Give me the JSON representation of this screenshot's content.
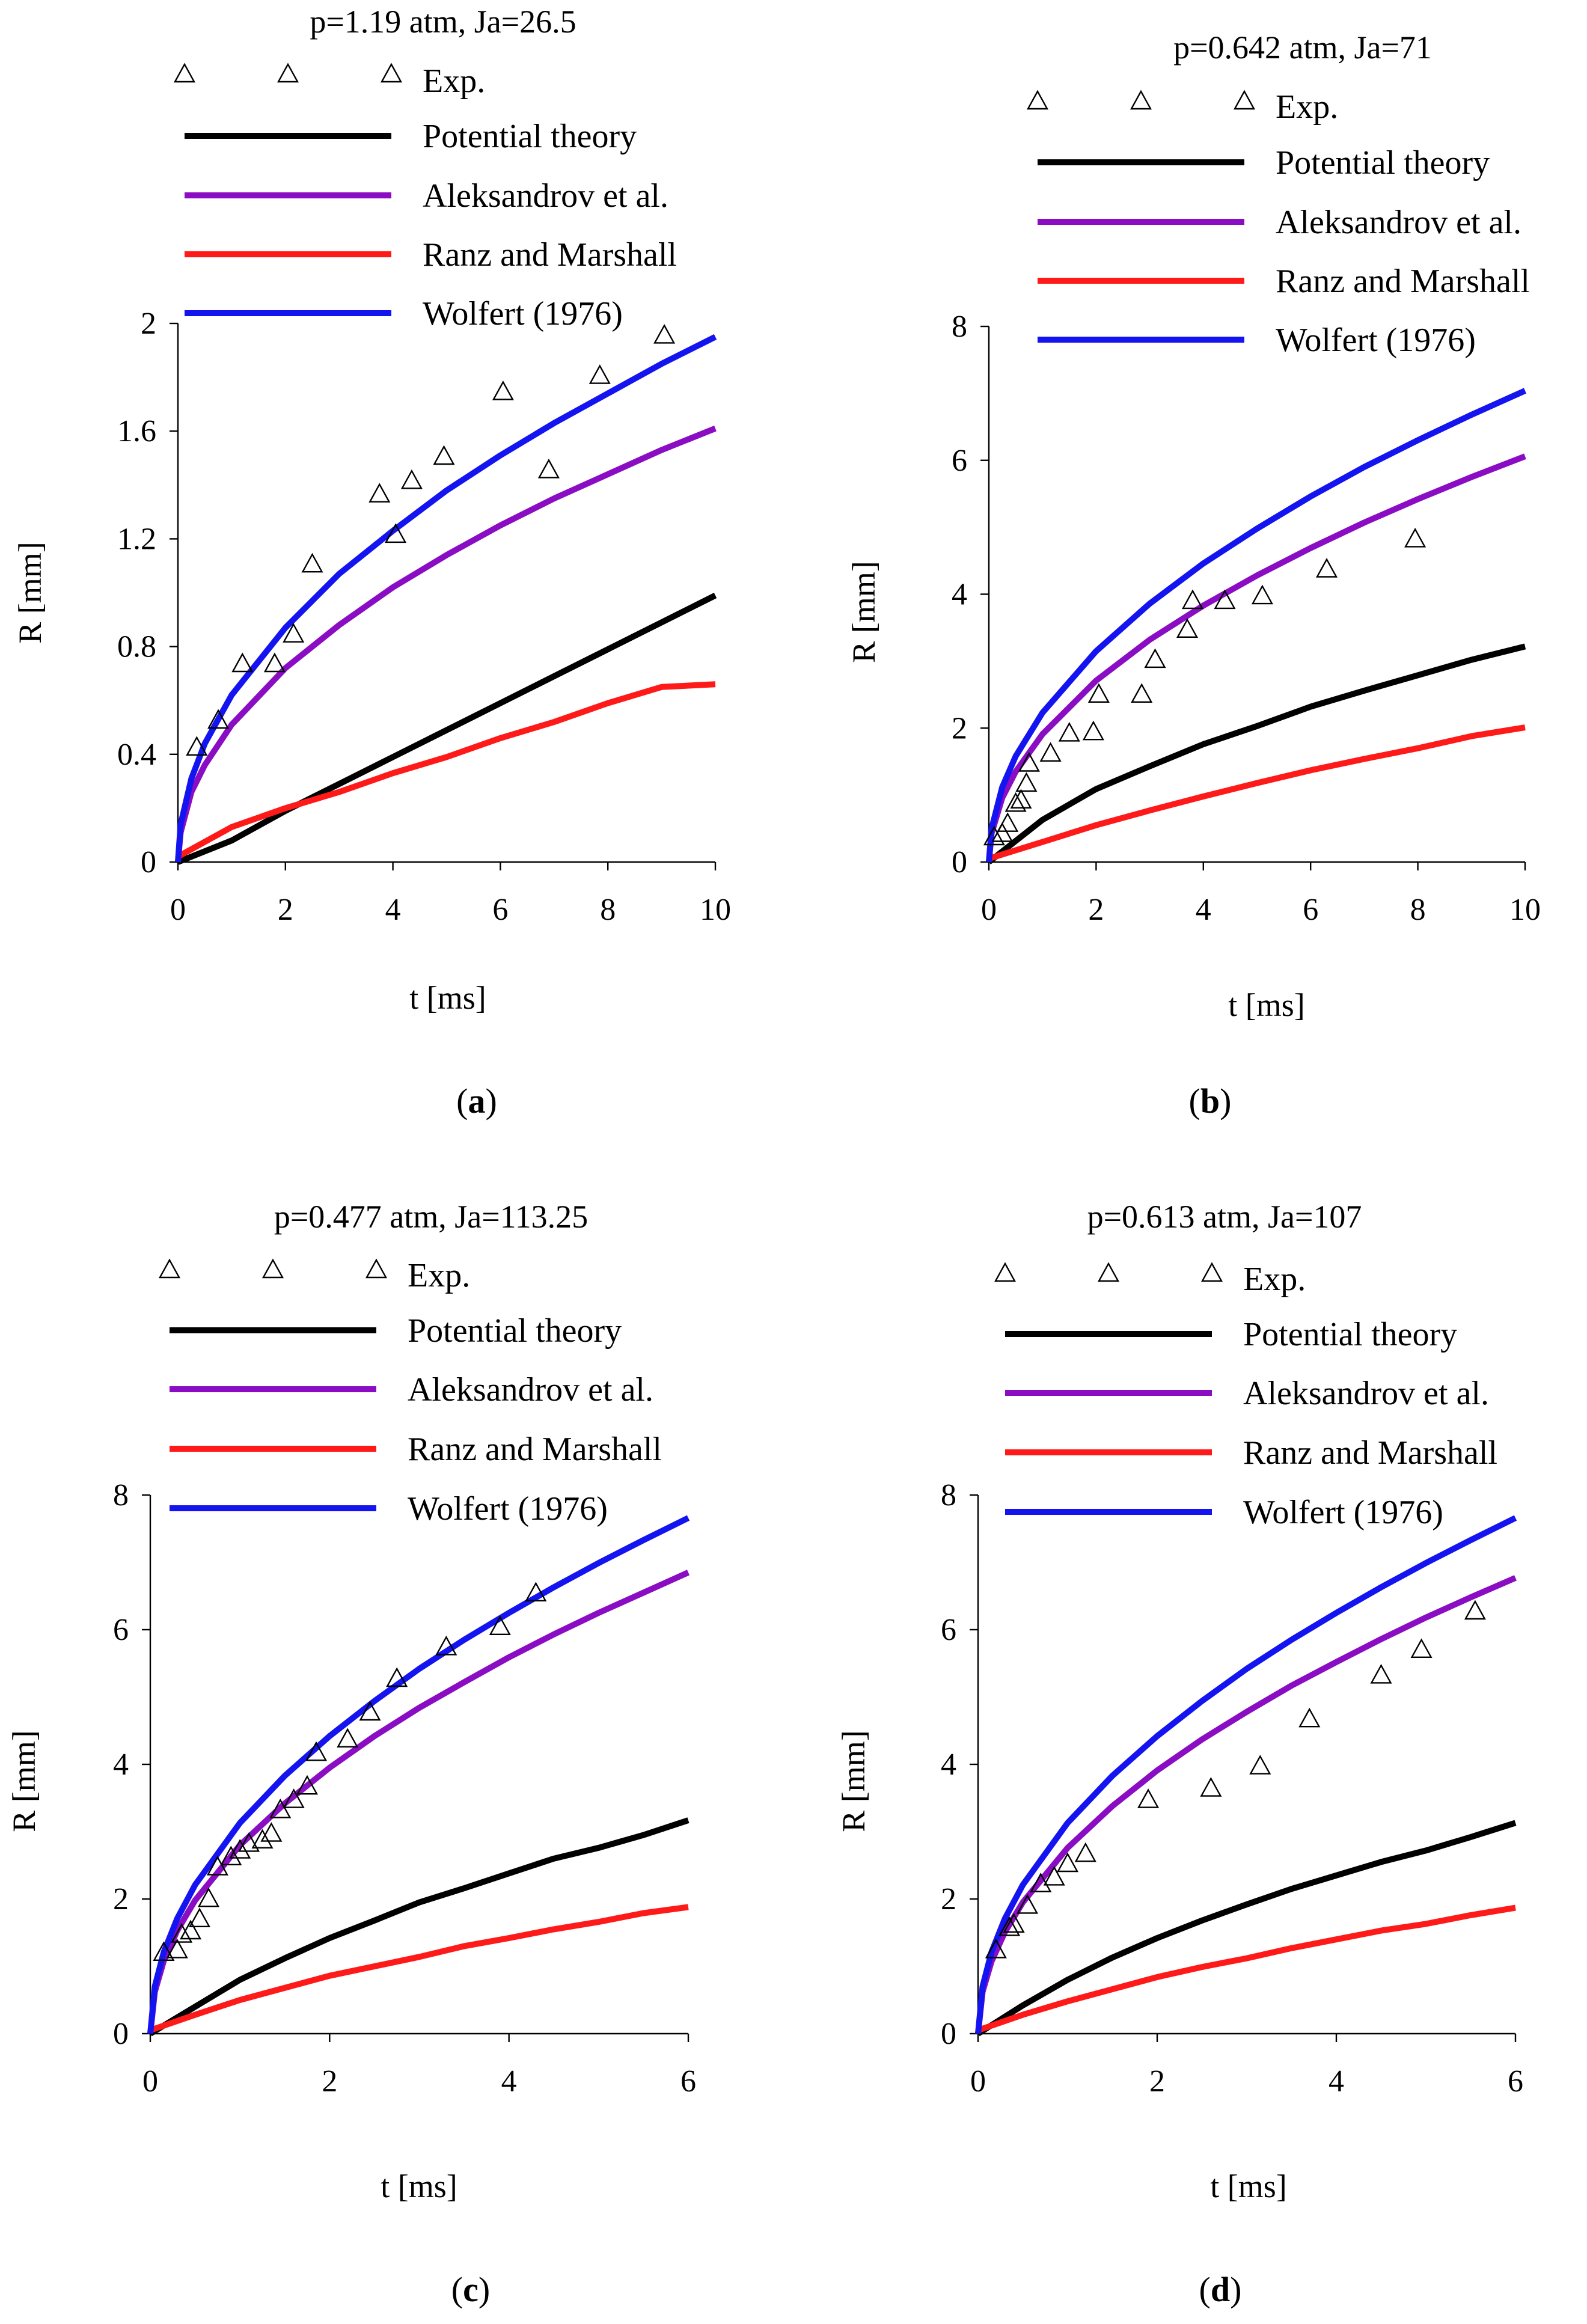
{
  "colors": {
    "exp": "#000000",
    "potential": "#000000",
    "aleksandrov": "#8a0dc4",
    "ranz": "#ff1a1a",
    "wolfert": "#1414f0"
  },
  "legend_labels": {
    "exp": "Exp.",
    "potential": "Potential theory",
    "aleksandrov": "Aleksandrov et al.",
    "ranz": "Ranz and Marshall",
    "wolfert": "Wolfert (1976)"
  },
  "chart_data": [
    {
      "type": "line",
      "panel_label": "a",
      "title": "p=1.19 atm, Ja=26.5",
      "xlabel": "t [ms]",
      "ylabel": "R [mm]",
      "xlim": [
        0,
        10
      ],
      "ylim": [
        0,
        2
      ],
      "xticks": [
        0,
        2,
        4,
        6,
        8,
        10
      ],
      "yticks": [
        0,
        0.4,
        0.8,
        1.2,
        1.6,
        2
      ],
      "ytick_labels": [
        "0",
        "0.4",
        "0.8",
        "1.2",
        "1.6",
        "2"
      ],
      "series": [
        {
          "key": "potential",
          "name": "Potential theory",
          "x": [
            0,
            1,
            2,
            3,
            4,
            5,
            6,
            7,
            8,
            9,
            10
          ],
          "y": [
            0,
            0.08,
            0.19,
            0.29,
            0.39,
            0.49,
            0.59,
            0.69,
            0.79,
            0.89,
            0.99
          ]
        },
        {
          "key": "aleksandrov",
          "name": "Aleksandrov et al.",
          "x": [
            0,
            0.05,
            0.25,
            0.5,
            1,
            2,
            3,
            4,
            5,
            6,
            7,
            8,
            9,
            10
          ],
          "y": [
            0,
            0.11,
            0.26,
            0.36,
            0.51,
            0.72,
            0.88,
            1.02,
            1.14,
            1.25,
            1.35,
            1.44,
            1.53,
            1.61
          ]
        },
        {
          "key": "ranz",
          "name": "Ranz and Marshall",
          "x": [
            0,
            1,
            2,
            3,
            4,
            5,
            6,
            7,
            8,
            9,
            10
          ],
          "y": [
            0.02,
            0.13,
            0.2,
            0.26,
            0.33,
            0.39,
            0.46,
            0.52,
            0.59,
            0.65,
            0.66
          ]
        },
        {
          "key": "wolfert",
          "name": "Wolfert (1976)",
          "x": [
            0,
            0.05,
            0.25,
            0.5,
            1,
            2,
            3,
            4,
            5,
            6,
            7,
            8,
            9,
            10
          ],
          "y": [
            0,
            0.14,
            0.31,
            0.44,
            0.62,
            0.87,
            1.07,
            1.23,
            1.38,
            1.51,
            1.63,
            1.74,
            1.85,
            1.95
          ]
        }
      ],
      "exp": {
        "name": "Exp.",
        "x": [
          0.35,
          0.75,
          1.2,
          1.8,
          2.15,
          2.5,
          3.75,
          4.05,
          4.35,
          4.95,
          6.05,
          6.9,
          7.85,
          9.05
        ],
        "y": [
          0.42,
          0.52,
          0.73,
          0.73,
          0.84,
          1.1,
          1.36,
          1.21,
          1.41,
          1.5,
          1.74,
          1.45,
          1.8,
          1.95
        ]
      }
    },
    {
      "type": "line",
      "panel_label": "b",
      "title": "p=0.642 atm, Ja=71",
      "xlabel": "t [ms]",
      "ylabel": "R [mm]",
      "xlim": [
        0,
        10
      ],
      "ylim": [
        0,
        8
      ],
      "xticks": [
        0,
        2,
        4,
        6,
        8,
        10
      ],
      "yticks": [
        0,
        2,
        4,
        6,
        8
      ],
      "ytick_labels": [
        "0",
        "2",
        "4",
        "6",
        "8"
      ],
      "series": [
        {
          "key": "potential",
          "name": "Potential theory",
          "x": [
            0,
            1,
            2,
            3,
            4,
            5,
            6,
            7,
            8,
            9,
            10
          ],
          "y": [
            0,
            0.63,
            1.09,
            1.43,
            1.76,
            2.03,
            2.32,
            2.56,
            2.79,
            3.02,
            3.22
          ]
        },
        {
          "key": "aleksandrov",
          "name": "Aleksandrov et al.",
          "x": [
            0,
            0.05,
            0.25,
            0.5,
            1,
            2,
            3,
            4,
            5,
            6,
            7,
            8,
            9,
            10
          ],
          "y": [
            0,
            0.43,
            0.96,
            1.35,
            1.91,
            2.71,
            3.32,
            3.83,
            4.28,
            4.69,
            5.07,
            5.42,
            5.75,
            6.06
          ]
        },
        {
          "key": "ranz",
          "name": "Ranz and Marshall",
          "x": [
            0,
            1,
            2,
            3,
            4,
            5,
            6,
            7,
            8,
            9,
            10
          ],
          "y": [
            0.05,
            0.3,
            0.55,
            0.77,
            0.98,
            1.18,
            1.37,
            1.54,
            1.7,
            1.88,
            2.01
          ]
        },
        {
          "key": "wolfert",
          "name": "Wolfert (1976)",
          "x": [
            0,
            0.05,
            0.25,
            0.5,
            1,
            2,
            3,
            4,
            5,
            6,
            7,
            8,
            9,
            10
          ],
          "y": [
            0,
            0.5,
            1.12,
            1.58,
            2.23,
            3.15,
            3.86,
            4.46,
            4.98,
            5.46,
            5.9,
            6.3,
            6.68,
            7.04
          ]
        }
      ],
      "exp": {
        "name": "Exp.",
        "x": [
          0.1,
          0.25,
          0.35,
          0.5,
          0.6,
          0.7,
          0.75,
          1.15,
          1.5,
          1.95,
          2.05,
          2.85,
          3.1,
          3.7,
          3.8,
          4.4,
          5.1,
          6.3,
          7.95
        ],
        "y": [
          0.35,
          0.4,
          0.55,
          0.85,
          0.9,
          1.15,
          1.45,
          1.6,
          1.9,
          1.92,
          2.48,
          2.48,
          3.0,
          3.45,
          3.88,
          3.88,
          3.95,
          4.35,
          4.8
        ]
      }
    },
    {
      "type": "line",
      "panel_label": "c",
      "title": "p=0.477 atm, Ja=113.25",
      "xlabel": "t [ms]",
      "ylabel": "R [mm]",
      "xlim": [
        0,
        6
      ],
      "ylim": [
        0,
        8
      ],
      "xticks": [
        0,
        2,
        4,
        6
      ],
      "yticks": [
        0,
        2,
        4,
        6,
        8
      ],
      "ytick_labels": [
        "0",
        "2",
        "4",
        "6",
        "8"
      ],
      "series": [
        {
          "key": "potential",
          "name": "Potential theory",
          "x": [
            0,
            0.5,
            1,
            1.5,
            2,
            2.5,
            3,
            3.5,
            4,
            4.5,
            5,
            5.5,
            6
          ],
          "y": [
            0,
            0.4,
            0.8,
            1.12,
            1.42,
            1.68,
            1.95,
            2.16,
            2.38,
            2.6,
            2.76,
            2.95,
            3.17
          ]
        },
        {
          "key": "aleksandrov",
          "name": "Aleksandrov et al.",
          "x": [
            0,
            0.05,
            0.15,
            0.3,
            0.5,
            1,
            1.5,
            2,
            2.5,
            3,
            3.5,
            4,
            4.5,
            5,
            5.5,
            6
          ],
          "y": [
            0,
            0.62,
            1.08,
            1.53,
            1.98,
            2.8,
            3.42,
            3.95,
            4.42,
            4.84,
            5.22,
            5.59,
            5.93,
            6.25,
            6.55,
            6.85
          ]
        },
        {
          "key": "ranz",
          "name": "Ranz and Marshall",
          "x": [
            0,
            0.5,
            1,
            1.5,
            2,
            2.5,
            3,
            3.5,
            4,
            4.5,
            5,
            5.5,
            6
          ],
          "y": [
            0.05,
            0.28,
            0.5,
            0.68,
            0.86,
            1.0,
            1.14,
            1.3,
            1.42,
            1.55,
            1.66,
            1.79,
            1.88
          ]
        },
        {
          "key": "wolfert",
          "name": "Wolfert (1976)",
          "x": [
            0,
            0.05,
            0.15,
            0.3,
            0.5,
            1,
            1.5,
            2,
            2.5,
            3,
            3.5,
            4,
            4.5,
            5,
            5.5,
            6
          ],
          "y": [
            0,
            0.7,
            1.21,
            1.71,
            2.21,
            3.13,
            3.83,
            4.42,
            4.94,
            5.42,
            5.85,
            6.25,
            6.63,
            6.99,
            7.33,
            7.66
          ]
        }
      ],
      "exp": {
        "name": "Exp.",
        "x": [
          0.15,
          0.3,
          0.35,
          0.45,
          0.55,
          0.65,
          0.75,
          0.9,
          1.0,
          1.1,
          1.25,
          1.35,
          1.45,
          1.6,
          1.75,
          1.85,
          2.2,
          2.45,
          2.75,
          3.3,
          3.9,
          4.3
        ],
        "y": [
          1.18,
          1.22,
          1.45,
          1.5,
          1.68,
          1.98,
          2.45,
          2.6,
          2.7,
          2.8,
          2.85,
          2.95,
          3.3,
          3.45,
          3.65,
          4.15,
          4.35,
          4.75,
          5.25,
          5.72,
          6.02,
          6.52
        ]
      }
    },
    {
      "type": "line",
      "panel_label": "d",
      "title": "p=0.613 atm, Ja=107",
      "xlabel": "t [ms]",
      "ylabel": "R [mm]",
      "xlim": [
        0,
        6
      ],
      "ylim": [
        0,
        8
      ],
      "xticks": [
        0,
        2,
        4,
        6
      ],
      "yticks": [
        0,
        2,
        4,
        6,
        8
      ],
      "ytick_labels": [
        "0",
        "2",
        "4",
        "6",
        "8"
      ],
      "series": [
        {
          "key": "potential",
          "name": "Potential theory",
          "x": [
            0,
            0.5,
            1,
            1.5,
            2,
            2.5,
            3,
            3.5,
            4,
            4.5,
            5,
            5.5,
            6
          ],
          "y": [
            0,
            0.42,
            0.8,
            1.13,
            1.42,
            1.68,
            1.92,
            2.15,
            2.35,
            2.55,
            2.72,
            2.92,
            3.13
          ]
        },
        {
          "key": "aleksandrov",
          "name": "Aleksandrov et al.",
          "x": [
            0,
            0.05,
            0.15,
            0.3,
            0.5,
            1,
            1.5,
            2,
            2.5,
            3,
            3.5,
            4,
            4.5,
            5,
            5.5,
            6
          ],
          "y": [
            0,
            0.62,
            1.07,
            1.51,
            1.95,
            2.76,
            3.38,
            3.91,
            4.37,
            4.78,
            5.17,
            5.52,
            5.86,
            6.18,
            6.48,
            6.77
          ]
        },
        {
          "key": "ranz",
          "name": "Ranz and Marshall",
          "x": [
            0,
            0.5,
            1,
            1.5,
            2,
            2.5,
            3,
            3.5,
            4,
            4.5,
            5,
            5.5,
            6
          ],
          "y": [
            0.05,
            0.28,
            0.48,
            0.66,
            0.84,
            0.99,
            1.12,
            1.27,
            1.4,
            1.53,
            1.63,
            1.76,
            1.87
          ]
        },
        {
          "key": "wolfert",
          "name": "Wolfert (1976)",
          "x": [
            0,
            0.05,
            0.15,
            0.3,
            0.5,
            1,
            1.5,
            2,
            2.5,
            3,
            3.5,
            4,
            4.5,
            5,
            5.5,
            6
          ],
          "y": [
            0,
            0.7,
            1.21,
            1.71,
            2.21,
            3.13,
            3.83,
            4.42,
            4.94,
            5.42,
            5.85,
            6.25,
            6.63,
            6.99,
            7.33,
            7.66
          ]
        }
      ],
      "exp": {
        "name": "Exp.",
        "x": [
          0.2,
          0.35,
          0.4,
          0.55,
          0.7,
          0.85,
          1.0,
          1.2,
          1.9,
          2.6,
          3.15,
          3.7,
          4.5,
          4.95,
          5.55
        ],
        "y": [
          1.22,
          1.55,
          1.6,
          1.88,
          2.2,
          2.3,
          2.5,
          2.65,
          3.45,
          3.62,
          3.95,
          4.65,
          5.3,
          5.68,
          6.25
        ]
      }
    }
  ]
}
